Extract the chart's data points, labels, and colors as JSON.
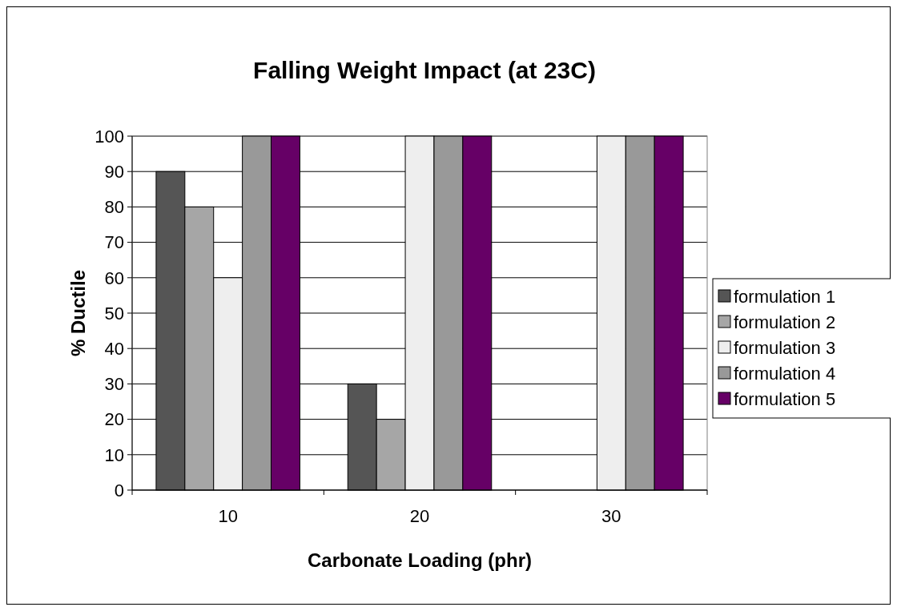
{
  "chart_data": {
    "type": "bar",
    "title": "Falling Weight Impact (at 23C)",
    "xlabel": "Carbonate Loading (phr)",
    "ylabel": "% Ductile",
    "categories": [
      "10",
      "20",
      "30"
    ],
    "series": [
      {
        "name": "formulation 1",
        "color": "#555555",
        "values": [
          90,
          30,
          0
        ]
      },
      {
        "name": "formulation 2",
        "color": "#a6a6a6",
        "values": [
          80,
          20,
          0
        ]
      },
      {
        "name": "formulation 3",
        "color": "#eeeeee",
        "values": [
          60,
          100,
          100
        ]
      },
      {
        "name": "formulation 4",
        "color": "#999999",
        "values": [
          100,
          100,
          100
        ]
      },
      {
        "name": "formulation 5",
        "color": "#660066",
        "values": [
          100,
          100,
          100
        ]
      }
    ],
    "ylim": [
      0,
      100
    ],
    "yticks": [
      0,
      10,
      20,
      30,
      40,
      50,
      60,
      70,
      80,
      90,
      100
    ],
    "grid": "y",
    "legend": "right"
  }
}
